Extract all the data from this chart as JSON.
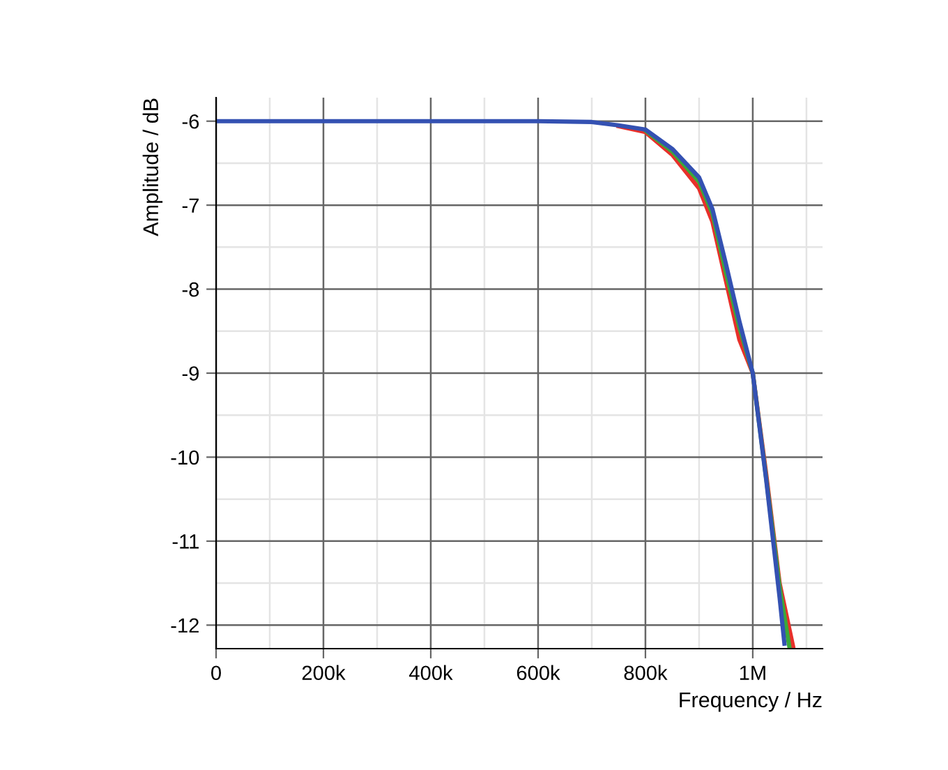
{
  "chart_data": {
    "type": "line",
    "xlabel": "Frequency / Hz",
    "ylabel": "Amplitude / dB",
    "xlim": [
      0,
      1130000
    ],
    "ylim": [
      -12.28,
      -5.72
    ],
    "xticks": [
      0,
      {
        "value": 200000,
        "label": "200k"
      },
      {
        "value": 400000,
        "label": "400k"
      },
      {
        "value": 600000,
        "label": "600k"
      },
      {
        "value": 800000,
        "label": "800k"
      },
      {
        "value": 1000000,
        "label": "1M"
      }
    ],
    "yticks": [
      -12,
      -11,
      -10,
      -9,
      -8,
      -7,
      -6
    ],
    "grid": true,
    "marker": "none",
    "line_style": "solid",
    "series": [
      {
        "color": "#e8302a",
        "x": [
          750000,
          800000,
          850000,
          900000,
          925000,
          950000,
          975000,
          1000000,
          1025000,
          1050000,
          1075000
        ],
        "values": [
          -6.06,
          -6.13,
          -6.4,
          -6.8,
          -7.2,
          -7.9,
          -8.6,
          -9.0,
          -10.2,
          -11.5,
          -12.25
        ]
      },
      {
        "color": "#3aa83a",
        "x": [
          800000,
          850000,
          900000,
          925000,
          950000,
          975000,
          1000000,
          1025000,
          1050000,
          1068000
        ],
        "values": [
          -6.11,
          -6.36,
          -6.72,
          -7.1,
          -7.8,
          -8.45,
          -9.0,
          -10.25,
          -11.55,
          -12.25
        ]
      },
      {
        "color": "#3451b2",
        "x": [
          0,
          600000,
          700000,
          750000,
          800000,
          850000,
          875000,
          900000,
          925000,
          950000,
          975000,
          1000000,
          1025000,
          1050000,
          1059000
        ],
        "values": [
          -6,
          -6,
          -6.01,
          -6.05,
          -6.1,
          -6.33,
          -6.5,
          -6.67,
          -7.05,
          -7.7,
          -8.38,
          -9.0,
          -10.27,
          -11.67,
          -12.22
        ]
      }
    ]
  }
}
